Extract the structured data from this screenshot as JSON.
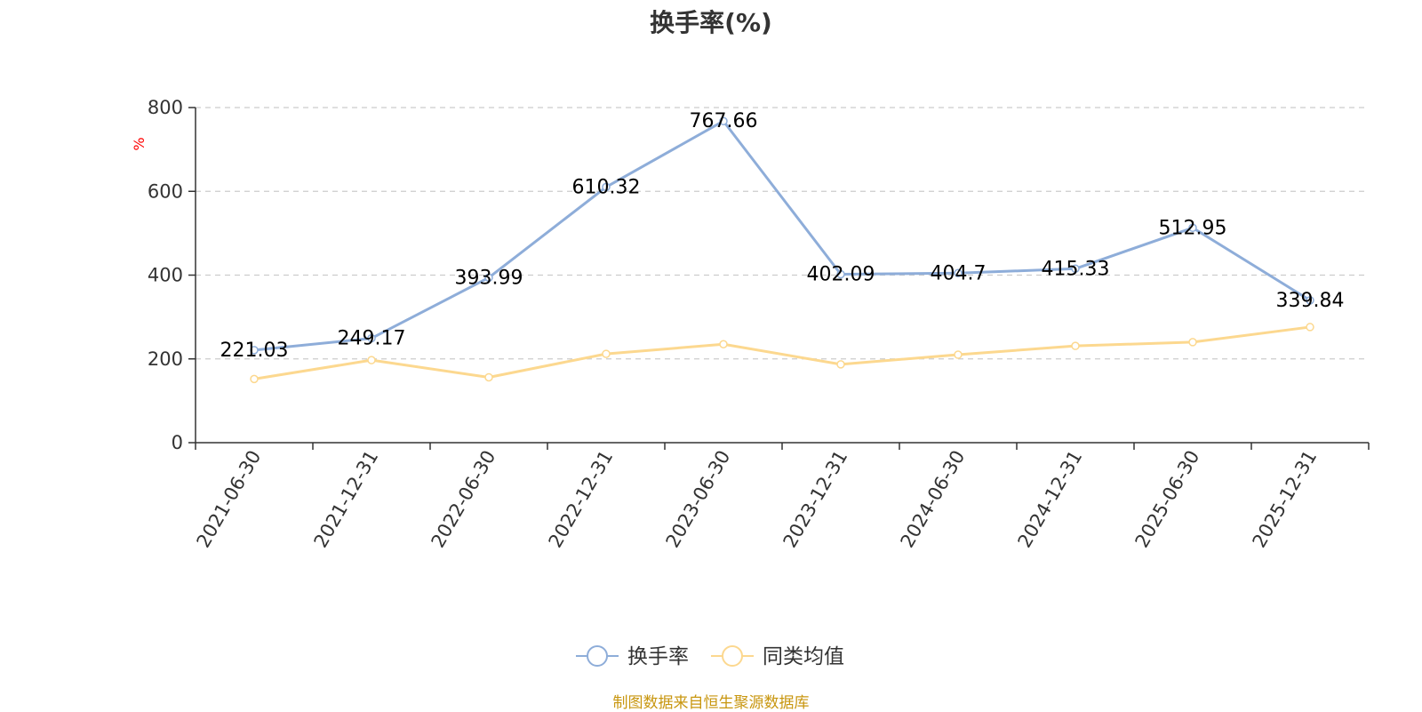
{
  "title": "换手率(%)",
  "source": "制图数据来自恒生聚源数据库",
  "colors": {
    "series1": "#8eadd9",
    "series2": "#fcd88f",
    "axis": "#333333",
    "grid": "#cccccc",
    "unit": "#ff0000",
    "source": "#c8960f"
  },
  "chart_data": {
    "type": "line",
    "ylabel": "%",
    "ylim": [
      0,
      800
    ],
    "yticks": [
      0,
      200,
      400,
      600,
      800
    ],
    "grid": true,
    "legend_position": "bottom",
    "categories": [
      "2021-06-30",
      "2021-12-31",
      "2022-06-30",
      "2022-12-31",
      "2023-06-30",
      "2023-12-31",
      "2024-06-30",
      "2024-12-31",
      "2025-06-30",
      "2025-12-31"
    ],
    "series": [
      {
        "name": "换手率",
        "values": [
          221.03,
          249.17,
          393.99,
          610.32,
          767.66,
          402.09,
          404.7,
          415.33,
          512.95,
          339.84
        ],
        "labels": [
          "221.03",
          "249.17",
          "393.99",
          "610.32",
          "767.66",
          "402.09",
          "404.7",
          "415.33",
          "512.95",
          "339.84"
        ]
      },
      {
        "name": "同类均值",
        "values": [
          152,
          197,
          156,
          212,
          235,
          187,
          210,
          231,
          240,
          276
        ]
      }
    ]
  }
}
